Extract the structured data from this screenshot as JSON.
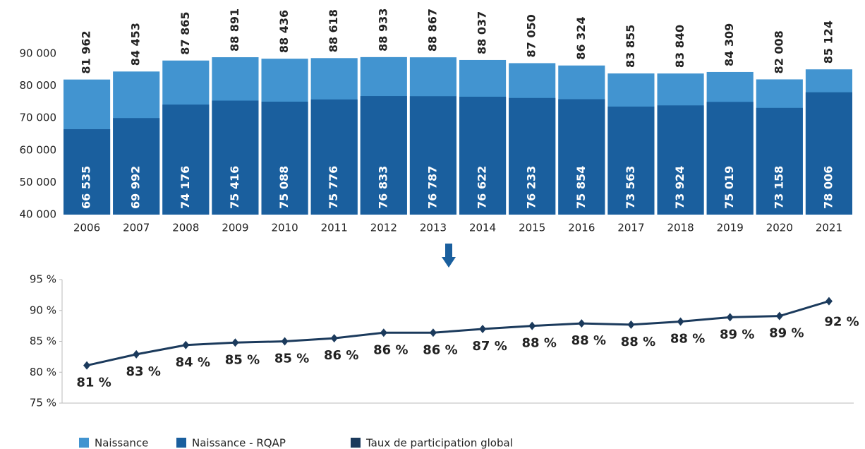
{
  "chart_data": [
    {
      "type": "bar",
      "categories": [
        "2006",
        "2007",
        "2008",
        "2009",
        "2010",
        "2011",
        "2012",
        "2013",
        "2014",
        "2015",
        "2016",
        "2017",
        "2018",
        "2019",
        "2020",
        "2021"
      ],
      "series": [
        {
          "name": "Naissance",
          "color": "#4294d0",
          "values": [
            81962,
            84453,
            87865,
            88891,
            88436,
            88618,
            88933,
            88867,
            88037,
            87050,
            86324,
            83855,
            83840,
            84309,
            82008,
            85124
          ],
          "value_labels": [
            "81 962",
            "84 453",
            "87 865",
            "88 891",
            "88 436",
            "88 618",
            "88 933",
            "88 867",
            "88 037",
            "87 050",
            "86 324",
            "83 855",
            "83 840",
            "84 309",
            "82 008",
            "85 124"
          ]
        },
        {
          "name": "Naissance - RQAP",
          "color": "#1a5f9e",
          "values": [
            66535,
            69992,
            74176,
            75416,
            75088,
            75776,
            76833,
            76787,
            76622,
            76233,
            75854,
            73563,
            73924,
            75019,
            73158,
            78006
          ],
          "value_labels": [
            "66 535",
            "69 992",
            "74 176",
            "75 416",
            "75 088",
            "75 776",
            "76 833",
            "76 787",
            "76 622",
            "76 233",
            "75 854",
            "73 563",
            "73 924",
            "75 019",
            "73 158",
            "78 006"
          ]
        }
      ],
      "ylim": [
        40000,
        90000
      ],
      "yticks": [
        {
          "value": 40000,
          "label": "40 000"
        },
        {
          "value": 50000,
          "label": "50 000"
        },
        {
          "value": 60000,
          "label": "60 000"
        },
        {
          "value": 70000,
          "label": "70 000"
        },
        {
          "value": 80000,
          "label": "80 000"
        },
        {
          "value": 90000,
          "label": "90 000"
        }
      ]
    },
    {
      "type": "line",
      "series": [
        {
          "name": "Taux de participation global",
          "color": "#1b3a5c",
          "values": [
            81.1,
            82.9,
            84.4,
            84.8,
            85.0,
            85.5,
            86.4,
            86.4,
            87.0,
            87.5,
            87.9,
            87.7,
            88.2,
            88.9,
            89.1,
            91.5
          ],
          "value_labels": [
            "81 %",
            "83 %",
            "84 %",
            "85 %",
            "85 %",
            "86 %",
            "86 %",
            "86 %",
            "87 %",
            "88 %",
            "88 %",
            "88 %",
            "88 %",
            "89 %",
            "89 %",
            "92 %"
          ]
        }
      ],
      "ylim": [
        75,
        95
      ],
      "yticks": [
        {
          "value": 75,
          "label": "75 %"
        },
        {
          "value": 80,
          "label": "80 %"
        },
        {
          "value": 85,
          "label": "85 %"
        },
        {
          "value": 90,
          "label": "90 %"
        },
        {
          "value": 95,
          "label": "95 %"
        }
      ]
    }
  ]
}
